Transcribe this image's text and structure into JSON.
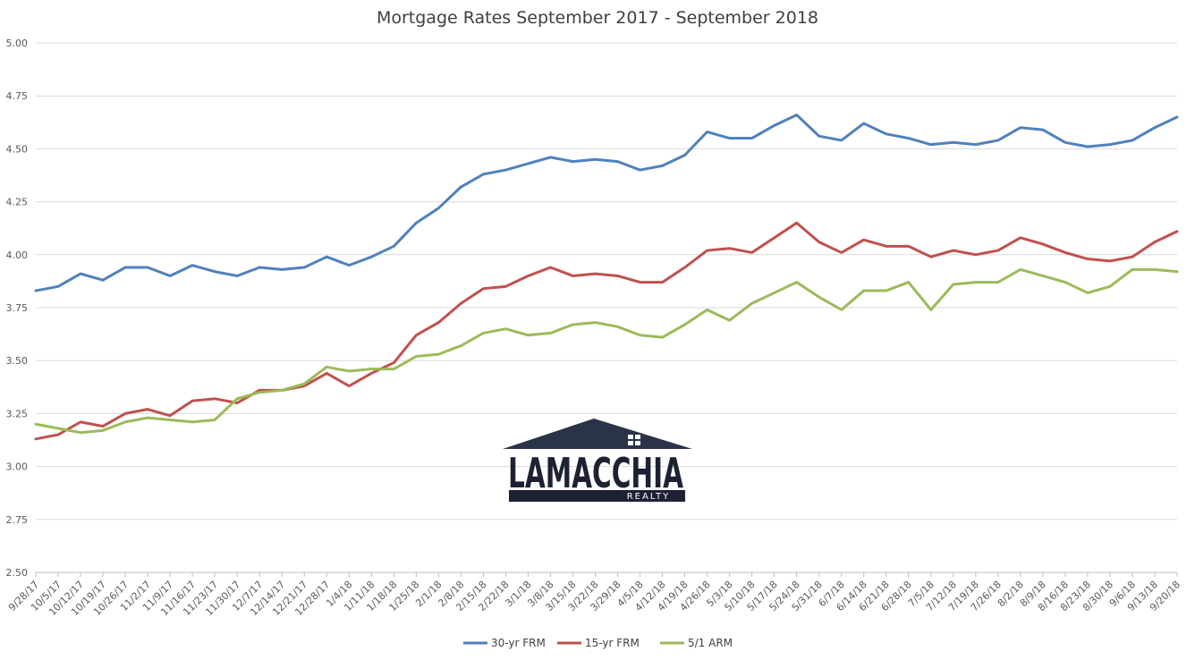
{
  "chart_data": {
    "type": "line",
    "title": "Mortgage Rates September 2017 - September 2018",
    "ylim": [
      2.5,
      5.0
    ],
    "ytick_labels": [
      "2.50",
      "2.75",
      "3.00",
      "3.25",
      "3.50",
      "3.75",
      "4.00",
      "4.25",
      "4.50",
      "4.75",
      "5.00"
    ],
    "ytick_values": [
      2.5,
      2.75,
      3.0,
      3.25,
      3.5,
      3.75,
      4.0,
      4.25,
      4.5,
      4.75,
      5.0
    ],
    "grid": true,
    "legend_position": "bottom",
    "categories": [
      "9/28/17",
      "10/5/17",
      "10/12/17",
      "10/19/17",
      "10/26/17",
      "11/2/17",
      "11/9/17",
      "11/16/17",
      "11/23/17",
      "11/30/17",
      "12/7/17",
      "12/14/17",
      "12/21/17",
      "12/28/17",
      "1/4/18",
      "1/11/18",
      "1/18/18",
      "1/25/18",
      "2/1/18",
      "2/8/18",
      "2/15/18",
      "2/22/18",
      "3/1/18",
      "3/8/18",
      "3/15/18",
      "3/22/18",
      "3/29/18",
      "4/5/18",
      "4/12/18",
      "4/19/18",
      "4/26/18",
      "5/3/18",
      "5/10/18",
      "5/17/18",
      "5/24/18",
      "5/31/18",
      "6/7/18",
      "6/14/18",
      "6/21/18",
      "6/28/18",
      "7/5/18",
      "7/12/18",
      "7/19/18",
      "7/26/18",
      "8/2/18",
      "8/9/18",
      "8/16/18",
      "8/23/18",
      "8/30/18",
      "9/6/18",
      "9/13/18",
      "9/20/18"
    ],
    "series": [
      {
        "name": "30-yr FRM",
        "color": "#4f81bd",
        "values": [
          3.83,
          3.85,
          3.91,
          3.88,
          3.94,
          3.94,
          3.9,
          3.95,
          3.92,
          3.9,
          3.94,
          3.93,
          3.94,
          3.99,
          3.95,
          3.99,
          4.04,
          4.15,
          4.22,
          4.32,
          4.38,
          4.4,
          4.43,
          4.46,
          4.44,
          4.45,
          4.44,
          4.4,
          4.42,
          4.47,
          4.58,
          4.55,
          4.55,
          4.61,
          4.66,
          4.56,
          4.54,
          4.62,
          4.57,
          4.55,
          4.52,
          4.53,
          4.52,
          4.54,
          4.6,
          4.59,
          4.53,
          4.51,
          4.52,
          4.54,
          4.6,
          4.65
        ]
      },
      {
        "name": "15-yr FRM",
        "color": "#c0504d",
        "values": [
          3.13,
          3.15,
          3.21,
          3.19,
          3.25,
          3.27,
          3.24,
          3.31,
          3.32,
          3.3,
          3.36,
          3.36,
          3.38,
          3.44,
          3.38,
          3.44,
          3.49,
          3.62,
          3.68,
          3.77,
          3.84,
          3.85,
          3.9,
          3.94,
          3.9,
          3.91,
          3.9,
          3.87,
          3.87,
          3.94,
          4.02,
          4.03,
          4.01,
          4.08,
          4.15,
          4.06,
          4.01,
          4.07,
          4.04,
          4.04,
          3.99,
          4.02,
          4.0,
          4.02,
          4.08,
          4.05,
          4.01,
          3.98,
          3.97,
          3.99,
          4.06,
          4.11
        ]
      },
      {
        "name": "5/1 ARM",
        "color": "#9bbb59",
        "values": [
          3.2,
          3.18,
          3.16,
          3.17,
          3.21,
          3.23,
          3.22,
          3.21,
          3.22,
          3.32,
          3.35,
          3.36,
          3.39,
          3.47,
          3.45,
          3.46,
          3.46,
          3.52,
          3.53,
          3.57,
          3.63,
          3.65,
          3.62,
          3.63,
          3.67,
          3.68,
          3.66,
          3.62,
          3.61,
          3.67,
          3.74,
          3.69,
          3.77,
          3.82,
          3.87,
          3.8,
          3.74,
          3.83,
          3.83,
          3.87,
          3.74,
          3.86,
          3.87,
          3.87,
          3.93,
          3.9,
          3.87,
          3.82,
          3.85,
          3.93,
          3.93,
          3.92
        ]
      }
    ]
  },
  "logo": {
    "wordmark": "LAMACCHIA",
    "subtext": "REALTY"
  }
}
